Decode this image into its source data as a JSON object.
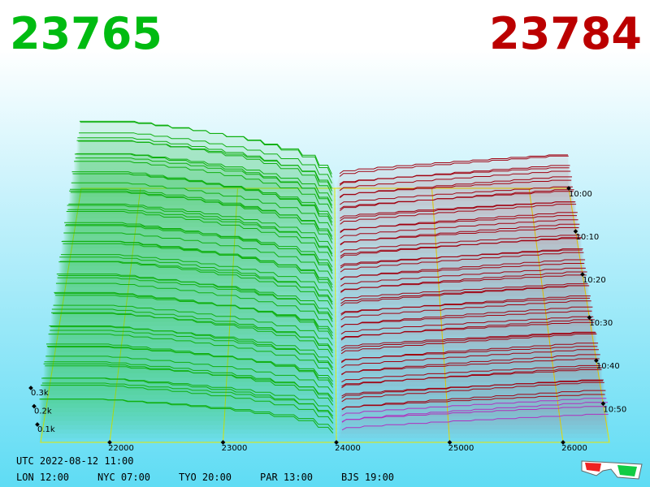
{
  "header": {
    "bid": "23765",
    "ask": "23784"
  },
  "price_axis": [
    22000,
    23000,
    24000,
    25000,
    26000
  ],
  "time_axis": [
    "10:00",
    "10:10",
    "10:20",
    "10:30",
    "10:40",
    "10:50"
  ],
  "volume_axis": [
    "0.3k",
    "0.2k",
    "0.1k"
  ],
  "clock": {
    "utc": "UTC 2022-08-12 11:00",
    "cities": [
      "LON 12:00",
      "NYC 07:00",
      "TYO 20:00",
      "PAR 13:00",
      "BJS 19:00"
    ]
  }
}
